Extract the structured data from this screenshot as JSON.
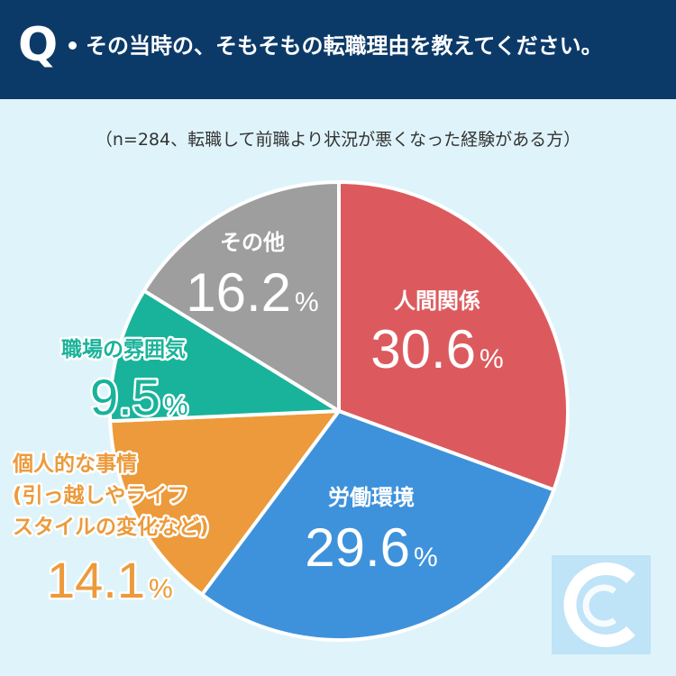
{
  "header": {
    "q_mark": "Q",
    "question": "その当時の、そもそもの転職理由を教えてください。"
  },
  "note": "（n=284、転職して前職より状況が悪くなった経験がある方）",
  "colors": {
    "header_bg": "#0c3a68",
    "background": "#dff4fa"
  },
  "chart_data": {
    "type": "pie",
    "unit": "%",
    "slices": [
      {
        "label": [
          "人間関係"
        ],
        "value": 30.6,
        "display": "30.6",
        "color": "#dc5a5e"
      },
      {
        "label": [
          "労働環境"
        ],
        "value": 29.6,
        "display": "29.6",
        "color": "#3e92db"
      },
      {
        "label": [
          "個人的な事情",
          "(引っ越しやライフ",
          "スタイルの変化など)"
        ],
        "value": 14.1,
        "display": "14.1",
        "color": "#ec9a3b"
      },
      {
        "label": [
          "職場の雰囲気"
        ],
        "value": 9.5,
        "display": "9.5",
        "color": "#18b39a"
      },
      {
        "label": [
          "その他"
        ],
        "value": 16.2,
        "display": "16.2",
        "color": "#9e9e9e"
      }
    ]
  }
}
